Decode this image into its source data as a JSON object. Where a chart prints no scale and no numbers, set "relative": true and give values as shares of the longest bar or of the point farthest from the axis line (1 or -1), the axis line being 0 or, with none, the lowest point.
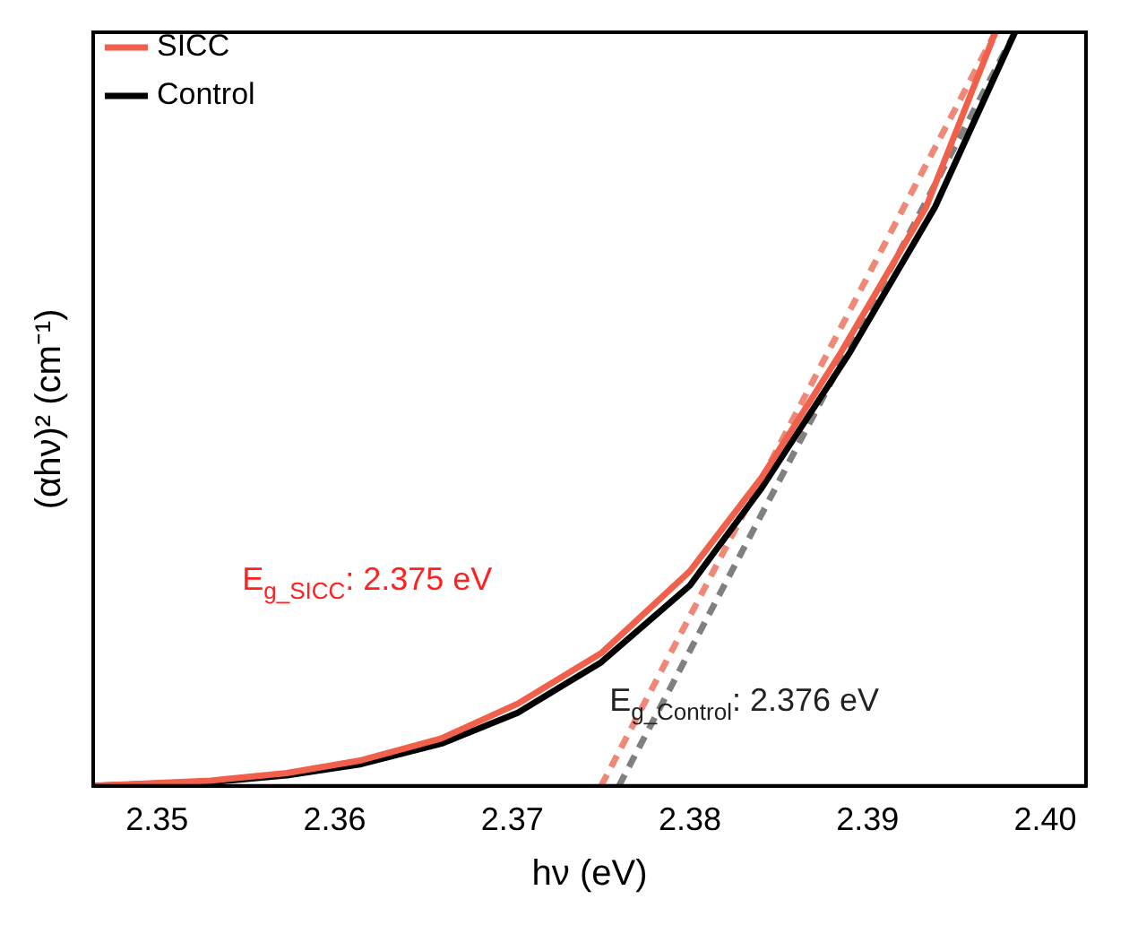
{
  "chart_data": {
    "type": "line",
    "xlabel": "hν (eV)",
    "ylabel": "(αhν)² (cm⁻¹)",
    "relative": true,
    "xlim": [
      2.3464,
      2.4023
    ],
    "xticks": [
      2.35,
      2.36,
      2.37,
      2.38,
      2.39,
      {
        "value": 2.4,
        "label": "2.40"
      }
    ],
    "series": [
      {
        "name": "SICC",
        "color": "#f0604a",
        "x": [
          2.3464,
          2.353,
          2.3573,
          2.3615,
          2.366,
          2.3703,
          2.375,
          2.38,
          2.384,
          2.3885,
          2.3933,
          2.3972
        ],
        "values": [
          0,
          0.007,
          0.017,
          0.034,
          0.063,
          0.109,
          0.176,
          0.285,
          0.408,
          0.575,
          0.768,
          1
        ]
      },
      {
        "name": "Control",
        "color": "#000000",
        "x": [
          2.3464,
          2.353,
          2.3573,
          2.3615,
          2.366,
          2.3703,
          2.375,
          2.38,
          2.384,
          2.389,
          2.3938,
          2.3983
        ],
        "values": [
          0,
          0.005,
          0.014,
          0.029,
          0.056,
          0.097,
          0.164,
          0.266,
          0.394,
          0.575,
          0.768,
          1
        ]
      },
      {
        "color": "#f08878",
        "line_style": "dashed",
        "x": [
          2.375,
          2.3972
        ],
        "values": [
          0,
          1
        ]
      },
      {
        "color": "#808080",
        "line_style": "dashed",
        "x": [
          2.376,
          2.3983
        ],
        "values": [
          0,
          1
        ]
      }
    ],
    "annotations": [
      "E$_{g_SICC}$: 2.375 eV",
      "E$_{g_Control}$: 2.376 eV"
    ],
    "legend": "top left",
    "grid": false,
    "marker": "none"
  }
}
